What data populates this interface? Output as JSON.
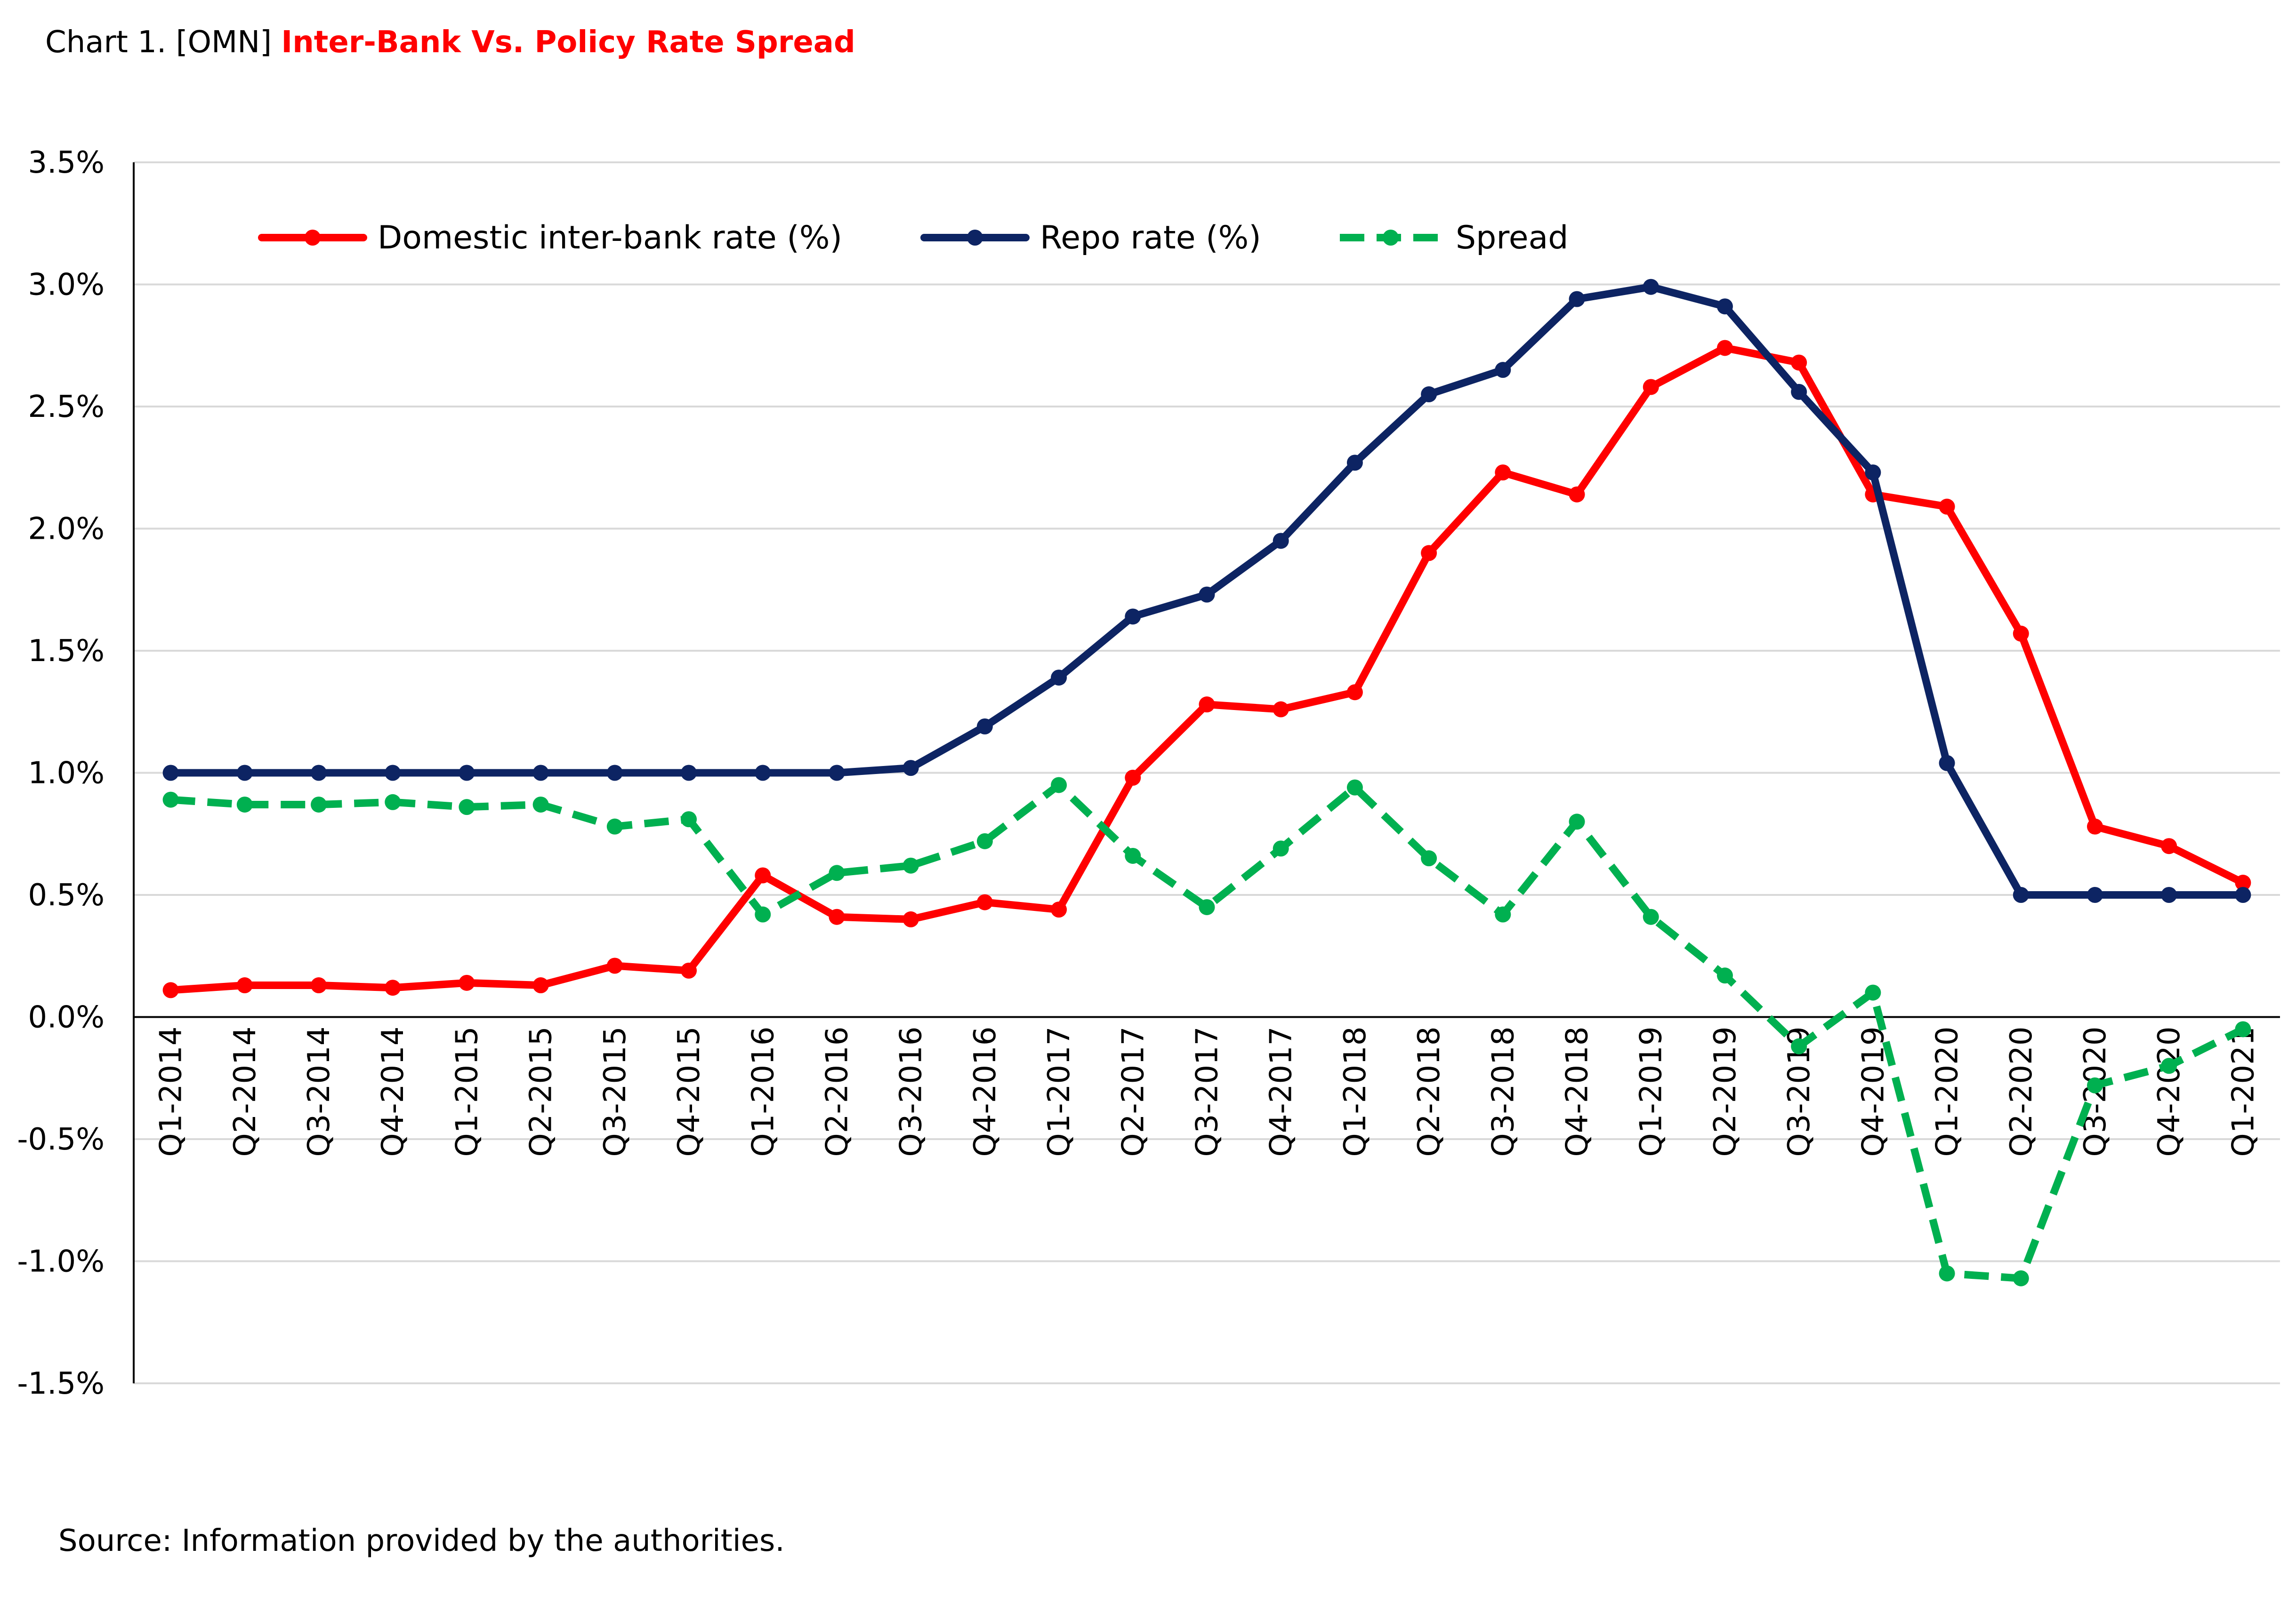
{
  "header": {
    "label": "Chart 1. [OMN]",
    "title": "Inter-Bank Vs. Policy Rate Spread"
  },
  "source": "Source: Information provided by the authorities.",
  "chart_data": {
    "type": "line",
    "title": "Inter-Bank Vs. Policy Rate Spread",
    "xlabel": "",
    "ylabel": "",
    "ylim": [
      -1.5,
      3.5
    ],
    "yticks": [
      3.5,
      3.0,
      2.5,
      2.0,
      1.5,
      1.0,
      0.5,
      0.0,
      -0.5,
      -1.0,
      -1.5
    ],
    "ytick_labels": [
      "3.5%",
      "3.0%",
      "2.5%",
      "2.0%",
      "1.5%",
      "1.0%",
      "0.5%",
      "0.0%",
      "-0.5%",
      "-1.0%",
      "-1.5%"
    ],
    "grid": true,
    "legend_position": "top",
    "categories": [
      "Q1-2014",
      "Q2-2014",
      "Q3-2014",
      "Q4-2014",
      "Q1-2015",
      "Q2-2015",
      "Q3-2015",
      "Q4-2015",
      "Q1-2016",
      "Q2-2016",
      "Q3-2016",
      "Q4-2016",
      "Q1-2017",
      "Q2-2017",
      "Q3-2017",
      "Q4-2017",
      "Q1-2018",
      "Q2-2018",
      "Q3-2018",
      "Q4-2018",
      "Q1-2019",
      "Q2-2019",
      "Q3-2019",
      "Q4-2019",
      "Q1-2020",
      "Q2-2020",
      "Q3-2020",
      "Q4-2020",
      "Q1-2021"
    ],
    "series": [
      {
        "name": "Domestic inter-bank rate (%)",
        "color": "#ff0000",
        "dashed": false,
        "values": [
          0.11,
          0.13,
          0.13,
          0.12,
          0.14,
          0.13,
          0.21,
          0.19,
          0.58,
          0.41,
          0.4,
          0.47,
          0.44,
          0.98,
          1.28,
          1.26,
          1.33,
          1.9,
          2.23,
          2.14,
          2.58,
          2.74,
          2.68,
          2.14,
          2.09,
          1.57,
          0.78,
          0.7,
          0.55
        ]
      },
      {
        "name": "Repo rate (%)",
        "color": "#0d2463",
        "dashed": false,
        "values": [
          1.0,
          1.0,
          1.0,
          1.0,
          1.0,
          1.0,
          1.0,
          1.0,
          1.0,
          1.0,
          1.02,
          1.19,
          1.39,
          1.64,
          1.73,
          1.95,
          2.27,
          2.55,
          2.65,
          2.94,
          2.99,
          2.91,
          2.56,
          2.23,
          1.04,
          0.5,
          0.5,
          0.5,
          0.5
        ]
      },
      {
        "name": "Spread",
        "color": "#00b050",
        "dashed": true,
        "values": [
          0.89,
          0.87,
          0.87,
          0.88,
          0.86,
          0.87,
          0.78,
          0.81,
          0.42,
          0.59,
          0.62,
          0.72,
          0.95,
          0.66,
          0.45,
          0.69,
          0.94,
          0.65,
          0.42,
          0.8,
          0.41,
          0.17,
          -0.12,
          0.1,
          -1.05,
          -1.07,
          -0.28,
          -0.2,
          -0.05
        ]
      }
    ]
  }
}
